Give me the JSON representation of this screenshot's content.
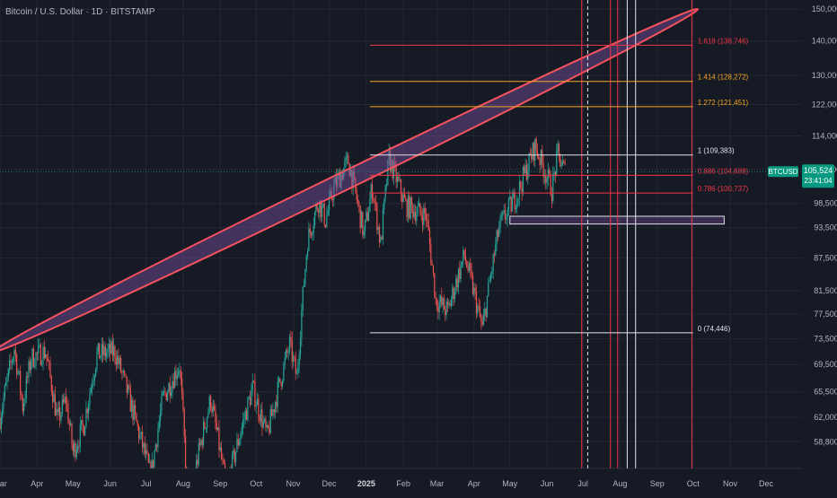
{
  "header": {
    "title": "Bitcoin / U.S. Dollar · 1D · BITSTAMP"
  },
  "colors": {
    "background": "#161a25",
    "grid": "#232734",
    "up": "#26a69a",
    "down": "#ef5350",
    "fib_red": "#f23645",
    "fib_orange": "#f5a623",
    "fib_white": "#e0e3eb",
    "ellipse_stroke": "#f7525f",
    "ellipse_fill": "#7b4f9d",
    "price_badge": "#089981",
    "axis_text": "#b2b5be"
  },
  "chart_data": {
    "type": "candlestick",
    "symbol": "BTCUSD",
    "exchange": "BITSTAMP",
    "interval": "1D",
    "y_axis": {
      "scale": "log",
      "ticks": [
        "150,000",
        "140,000",
        "130,000",
        "122,000",
        "114,000",
        "106,000",
        "98,500",
        "93,500",
        "87,500",
        "81,500",
        "77,500",
        "73,500",
        "69,500",
        "65,500",
        "62,000",
        "58,800"
      ],
      "tick_values": [
        150000,
        140000,
        130000,
        122000,
        114000,
        106000,
        98500,
        93500,
        87500,
        81500,
        77500,
        73500,
        69500,
        65500,
        62000,
        58800
      ],
      "range": [
        55500,
        153000
      ]
    },
    "x_axis": {
      "labels": [
        "Mar",
        "Apr",
        "May",
        "Jun",
        "Jul",
        "Aug",
        "Sep",
        "Oct",
        "Nov",
        "Dec",
        "2025",
        "Feb",
        "Mar",
        "Apr",
        "May",
        "Jun",
        "Jul",
        "Aug",
        "Sep",
        "Oct",
        "Nov",
        "Dec"
      ],
      "bold_labels": [
        "2025"
      ],
      "start": "2024-03-01",
      "end": "2025-12-31"
    },
    "last_price": {
      "label": "BTCUSD",
      "value": "105,524",
      "countdown": "23:41:04",
      "price": 105524
    },
    "price_path": [
      [
        "2024-03-01",
        62000
      ],
      [
        "2024-03-13",
        72000
      ],
      [
        "2024-03-20",
        63500
      ],
      [
        "2024-03-27",
        70500
      ],
      [
        "2024-04-08",
        71500
      ],
      [
        "2024-04-18",
        61500
      ],
      [
        "2024-04-25",
        64500
      ],
      [
        "2024-05-01",
        57500
      ],
      [
        "2024-05-10",
        61000
      ],
      [
        "2024-05-21",
        71000
      ],
      [
        "2024-06-05",
        71500
      ],
      [
        "2024-06-24",
        60500
      ],
      [
        "2024-07-05",
        54500
      ],
      [
        "2024-07-15",
        64500
      ],
      [
        "2024-07-29",
        69500
      ],
      [
        "2024-08-05",
        51000
      ],
      [
        "2024-08-24",
        64500
      ],
      [
        "2024-09-06",
        53000
      ],
      [
        "2024-09-28",
        66000
      ],
      [
        "2024-10-10",
        59500
      ],
      [
        "2024-10-29",
        72500
      ],
      [
        "2024-11-04",
        67500
      ],
      [
        "2024-11-13",
        91000
      ],
      [
        "2024-11-22",
        99000
      ],
      [
        "2024-11-28",
        95000
      ],
      [
        "2024-12-05",
        102000
      ],
      [
        "2024-12-17",
        108000
      ],
      [
        "2024-12-30",
        92000
      ],
      [
        "2025-01-06",
        102000
      ],
      [
        "2025-01-13",
        90000
      ],
      [
        "2025-01-20",
        108500
      ],
      [
        "2025-02-03",
        98000
      ],
      [
        "2025-02-20",
        96000
      ],
      [
        "2025-02-28",
        80000
      ],
      [
        "2025-03-10",
        78000
      ],
      [
        "2025-03-24",
        88000
      ],
      [
        "2025-04-08",
        75000
      ],
      [
        "2025-04-22",
        93500
      ],
      [
        "2025-05-08",
        101000
      ],
      [
        "2025-05-22",
        111500
      ],
      [
        "2025-06-05",
        101500
      ],
      [
        "2025-06-10",
        109500
      ],
      [
        "2025-06-16",
        105524
      ]
    ],
    "fib_levels": [
      {
        "ratio": 1.618,
        "value": 138746,
        "label": "1.618 (138,746)",
        "color": "#f23645"
      },
      {
        "ratio": 1.414,
        "value": 128272,
        "label": "1.414 (128,272)",
        "color": "#f5a623"
      },
      {
        "ratio": 1.272,
        "value": 121451,
        "label": "1.272 (121,451)",
        "color": "#f5a623"
      },
      {
        "ratio": 1,
        "value": 109383,
        "label": "1 (109,383)",
        "color": "#e0e3eb"
      },
      {
        "ratio": 0.886,
        "value": 104688,
        "label": "0.886 (104,688)",
        "color": "#f23645"
      },
      {
        "ratio": 0.786,
        "value": 100737,
        "label": "0.786 (100,737)",
        "color": "#f23645"
      },
      {
        "ratio": 0,
        "value": 74446,
        "label": "0 (74,446)",
        "color": "#e0e3eb"
      }
    ],
    "fib_date_range": [
      "2025-01-04",
      "2025-10-01"
    ],
    "ellipse": {
      "from": [
        "2024-02-25",
        71500
      ],
      "to": [
        "2025-10-05",
        150000
      ]
    },
    "zone_box": {
      "date_range": [
        "2025-05-01",
        "2025-10-27"
      ],
      "price_range": [
        94200,
        95800
      ]
    },
    "vertical_lines": [
      {
        "date": "2025-06-30",
        "color": "#f23645",
        "style": "solid"
      },
      {
        "date": "2025-07-05",
        "color": "#e0e3eb",
        "style": "dashed"
      },
      {
        "date": "2025-07-24",
        "color": "#f23645",
        "style": "solid"
      },
      {
        "date": "2025-07-30",
        "color": "#f23645",
        "style": "solid"
      },
      {
        "date": "2025-08-07",
        "color": "#e0e3eb",
        "style": "solid"
      },
      {
        "date": "2025-08-14",
        "color": "#e0e3eb",
        "style": "solid"
      },
      {
        "date": "2025-09-30",
        "color": "#f23645",
        "style": "solid"
      }
    ],
    "grid": true
  }
}
